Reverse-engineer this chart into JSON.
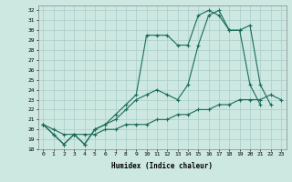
{
  "title": "",
  "xlabel": "Humidex (Indice chaleur)",
  "background_color": "#cce8e0",
  "grid_color": "#aacccc",
  "line_color": "#1a6b5a",
  "xlim": [
    -0.5,
    23.5
  ],
  "ylim": [
    18,
    32.5
  ],
  "xticks": [
    0,
    1,
    2,
    3,
    4,
    5,
    6,
    7,
    8,
    9,
    10,
    11,
    12,
    13,
    14,
    15,
    16,
    17,
    18,
    19,
    20,
    21,
    22,
    23
  ],
  "yticks": [
    18,
    19,
    20,
    21,
    22,
    23,
    24,
    25,
    26,
    27,
    28,
    29,
    30,
    31,
    32
  ],
  "series1": [
    20.5,
    19.5,
    18.5,
    19.5,
    18.5,
    20.0,
    20.5,
    21.5,
    22.5,
    23.5,
    29.5,
    29.5,
    29.5,
    28.5,
    28.5,
    31.5,
    32.0,
    31.5,
    30.0,
    30.0,
    24.5,
    22.5,
    null,
    null
  ],
  "series2": [
    20.5,
    19.5,
    18.5,
    19.5,
    18.5,
    20.0,
    20.5,
    21.0,
    22.0,
    23.0,
    23.5,
    24.0,
    23.5,
    23.0,
    24.5,
    28.5,
    31.5,
    32.0,
    30.0,
    30.0,
    30.5,
    24.5,
    22.5,
    null
  ],
  "series3": [
    20.5,
    20.0,
    19.5,
    19.5,
    19.5,
    19.5,
    20.0,
    20.0,
    20.5,
    20.5,
    20.5,
    21.0,
    21.0,
    21.5,
    21.5,
    22.0,
    22.0,
    22.5,
    22.5,
    23.0,
    23.0,
    23.0,
    23.5,
    23.0
  ]
}
